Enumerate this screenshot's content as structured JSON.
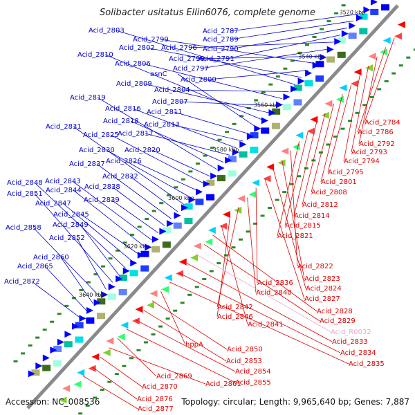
{
  "title": "Solibacter usitatus Ellin6076, complete genome",
  "footer": {
    "accession": "Accession: NC_008536",
    "summary": "Topology: circular; Length: 9,965,640 bp; Genes: 7,887"
  },
  "colors": {
    "forward_label": "#0000cc",
    "reverse_label": "#dd0000",
    "rna_label": "#f0a8c8",
    "backbone": "#8a8a8a",
    "forward_gene": "#0000ff",
    "reverse_gene": "#ff0000"
  },
  "scale_ticks": [
    "3520 kbp",
    "3540 kbp",
    "3560 kbp",
    "3580 kbp",
    "3600 kbp",
    "3620 kbp",
    "3640 kbp"
  ],
  "forward_labels": [
    "Acid_2787",
    "Acid_2789",
    "Acid_2790",
    "Acid_2791",
    "Acid_2796",
    "Acid_2797",
    "Acid_2798",
    "Acid_2799",
    "Acid_2800",
    "Acid_2802",
    "Acid_2803",
    "Acid_2804",
    "Acid_2806",
    "Acid_2807",
    "Acid_2809",
    "Acid_2810",
    "asnC",
    "Acid_2811",
    "Acid_2813",
    "Acid_2816",
    "Acid_2817",
    "Acid_2818",
    "Acid_2819",
    "Acid_2820",
    "Acid_2825",
    "Acid_2826",
    "Acid_2830",
    "Acid_2831",
    "Acid_2832",
    "Acid_2837",
    "Acid_2838",
    "Acid_2839",
    "Acid_2843",
    "Acid_2844",
    "Acid_2845",
    "Acid_2847",
    "Acid_2848",
    "Acid_2849",
    "Acid_2851",
    "Acid_2852",
    "Acid_2858",
    "Acid_2860",
    "Acid_2865",
    "Acid_2872"
  ],
  "reverse_labels": [
    "Acid_2784",
    "Acid_2786",
    "Acid_2792",
    "Acid_2793",
    "Acid_2794",
    "Acid_2795",
    "Acid_2801",
    "Acid_2808",
    "Acid_2812",
    "Acid_2814",
    "Acid_2815",
    "Acid_2821",
    "Acid_2822",
    "Acid_2823",
    "Acid_2824",
    "Acid_2827",
    "Acid_2836",
    "Acid_2840",
    "Acid_2842",
    "Acid_2846",
    "Acid_2841",
    "Acid_2828",
    "Acid_2829",
    "Acid_R0032",
    "Acid_2833",
    "Acid_2834",
    "Acid_2835",
    "hppA",
    "Acid_2850",
    "Acid_2853",
    "Acid_2854",
    "Acid_2855",
    "Acid_2869",
    "Acid_2861",
    "Acid_2870",
    "Acid_2876",
    "Acid_2877"
  ]
}
